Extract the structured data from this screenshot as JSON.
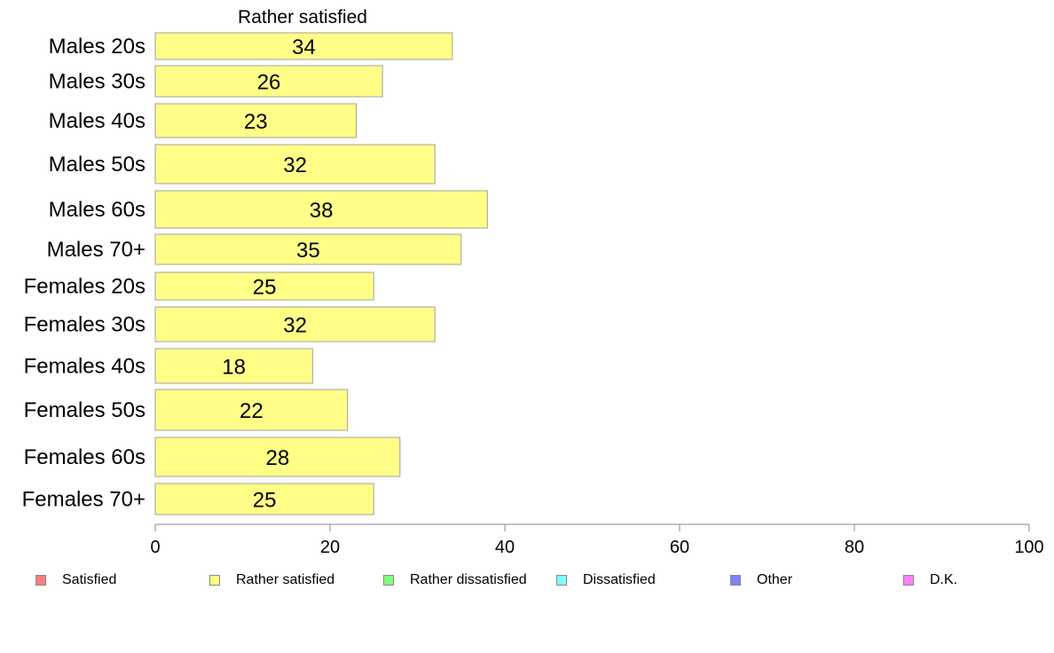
{
  "chart_data": {
    "type": "bar",
    "orientation": "horizontal",
    "title": "Rather satisfied",
    "categories": [
      "Males 20s",
      "Males 30s",
      "Males 40s",
      "Males 50s",
      "Males 60s",
      "Males 70+",
      "Females 20s",
      "Females 30s",
      "Females 40s",
      "Females 50s",
      "Females 60s",
      "Females 70+"
    ],
    "series": [
      {
        "name": "Rather satisfied",
        "values": [
          34,
          26,
          23,
          32,
          38,
          35,
          25,
          32,
          18,
          22,
          28,
          25
        ],
        "color": "#ffff88"
      }
    ],
    "xlim": [
      0,
      100
    ],
    "xticks": [
      0,
      20,
      40,
      60,
      80,
      100
    ],
    "grid": false,
    "legend": {
      "placement": "bottom",
      "items": [
        {
          "label": "Satisfied",
          "color": "#ff8080"
        },
        {
          "label": "Rather satisfied",
          "color": "#ffff80"
        },
        {
          "label": "Rather dissatisfied",
          "color": "#80ff80"
        },
        {
          "label": "Dissatisfied",
          "color": "#80ffff"
        },
        {
          "label": "Other",
          "color": "#8080ff"
        },
        {
          "label": "D.K.",
          "color": "#ff80ff"
        }
      ]
    }
  }
}
